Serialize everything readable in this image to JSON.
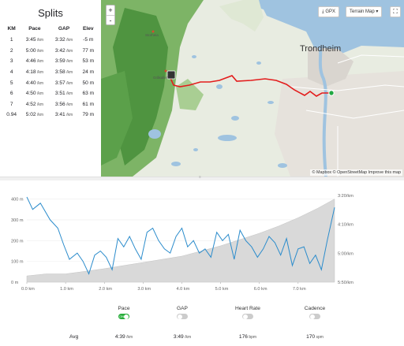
{
  "splits": {
    "title": "Splits",
    "headers": [
      "KM",
      "Pace",
      "GAP",
      "Elev"
    ],
    "rows": [
      {
        "km": "1",
        "pace": "3:45",
        "gap": "3:32",
        "elev": "-5 m"
      },
      {
        "km": "2",
        "pace": "5:00",
        "gap": "3:42",
        "elev": "77 m"
      },
      {
        "km": "3",
        "pace": "4:46",
        "gap": "3:59",
        "elev": "53 m"
      },
      {
        "km": "4",
        "pace": "4:18",
        "gap": "3:58",
        "elev": "24 m"
      },
      {
        "km": "5",
        "pace": "4:40",
        "gap": "3:57",
        "elev": "50 m"
      },
      {
        "km": "6",
        "pace": "4:50",
        "gap": "3:51",
        "elev": "63 m"
      },
      {
        "km": "7",
        "pace": "4:52",
        "gap": "3:56",
        "elev": "61 m"
      },
      {
        "km": "0.94",
        "pace": "5:02",
        "gap": "3:41",
        "elev": "79 m"
      }
    ],
    "unit": "/km"
  },
  "map": {
    "zoom_in": "+",
    "zoom_out": "-",
    "gpx_label": "GPX",
    "terrain_label": "Terrain Map",
    "attribution": "© Mapbox © OpenStreetMap Improve this map",
    "city": "Trondheim",
    "place_labels": [
      "Storheia",
      "Gråkallen"
    ],
    "route_color": "#e31c1c",
    "water_color": "#9fc3e0",
    "forest_color": "#6faa57"
  },
  "chart_data": {
    "type": "line",
    "title": "",
    "xlabel": "",
    "x_ticks": [
      "0.0 km",
      "1.0 km",
      "2.0 km",
      "3.0 km",
      "4.0 km",
      "5.0 km",
      "6.0 km",
      "7.0 km"
    ],
    "y_left_ticks": [
      "0 m",
      "100 m",
      "200 m",
      "300 m",
      "400 m"
    ],
    "y_right_ticks": [
      "3:20/km",
      "4:10/km",
      "5:00/km",
      "5:50/km"
    ],
    "ylim_left": [
      0,
      440
    ],
    "xlim": [
      0,
      7.94
    ],
    "series": [
      {
        "values_x": [
          0,
          0.5,
          1,
          1.5,
          2,
          2.5,
          3,
          3.5,
          4,
          4.5,
          5,
          5.5,
          6,
          6.5,
          7,
          7.5,
          7.94
        ],
        "values_y": [
          30,
          40,
          40,
          52,
          65,
          80,
          95,
          110,
          125,
          150,
          175,
          205,
          235,
          270,
          310,
          355,
          400
        ]
      }
    ],
    "pace_series": {
      "values_x": [
        0,
        0.15,
        0.35,
        0.6,
        0.8,
        0.95,
        1.1,
        1.3,
        1.45,
        1.6,
        1.75,
        1.9,
        2.05,
        2.2,
        2.35,
        2.5,
        2.65,
        2.8,
        2.95,
        3.1,
        3.25,
        3.4,
        3.55,
        3.7,
        3.85,
        4.0,
        4.15,
        4.3,
        4.45,
        4.6,
        4.75,
        4.9,
        5.05,
        5.2,
        5.35,
        5.5,
        5.65,
        5.8,
        5.95,
        6.1,
        6.25,
        6.4,
        6.55,
        6.7,
        6.85,
        7.0,
        7.15,
        7.3,
        7.45,
        7.6,
        7.75,
        7.94
      ],
      "values_y": [
        410,
        350,
        380,
        300,
        260,
        180,
        110,
        140,
        100,
        40,
        130,
        150,
        120,
        60,
        210,
        170,
        220,
        160,
        110,
        240,
        260,
        200,
        160,
        140,
        220,
        260,
        170,
        200,
        140,
        160,
        120,
        240,
        200,
        230,
        110,
        250,
        200,
        170,
        120,
        160,
        220,
        190,
        130,
        210,
        80,
        160,
        170,
        90,
        130,
        60,
        200,
        360
      ]
    },
    "area_color": "#d9d9d9",
    "line_color": "#2b8ccc"
  },
  "metrics": {
    "avg_label": "Avg",
    "items": [
      {
        "label": "Pace",
        "on": true,
        "on_text": "ON",
        "value": "4:39",
        "unit": "/km"
      },
      {
        "label": "GAP",
        "on": false,
        "value": "3:49",
        "unit": "/km"
      },
      {
        "label": "Heart Rate",
        "on": false,
        "value": "176",
        "unit": "bpm"
      },
      {
        "label": "Cadence",
        "on": false,
        "value": "170",
        "unit": "spm"
      }
    ]
  }
}
